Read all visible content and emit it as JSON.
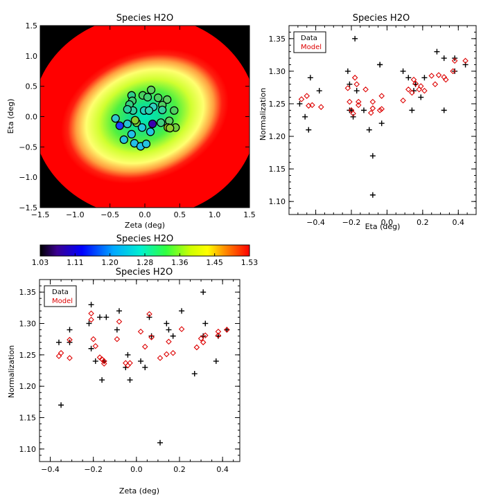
{
  "chart_data": [
    {
      "id": "map",
      "type": "heatmap",
      "title": "Species H2O",
      "xlabel": "Zeta (deg)",
      "ylabel": "Eta (deg)",
      "xlim": [
        -1.5,
        1.5
      ],
      "ylim": [
        -1.5,
        1.5
      ],
      "xticks": [
        "−1.5",
        "−1.0",
        "−0.5",
        "0.0",
        "0.5",
        "1.0",
        "1.5"
      ],
      "yticks": [
        "−1.5",
        "−1.0",
        "−0.5",
        "0.0",
        "0.5",
        "1.0",
        "1.5"
      ],
      "background": "#000000",
      "points": [
        {
          "x": -0.36,
          "y": -0.15,
          "c": "#1e3cff"
        },
        {
          "x": 0.11,
          "y": -0.12,
          "c": "#3a00b0"
        },
        {
          "x": -0.12,
          "y": -0.1,
          "c": "#7ad13c"
        },
        {
          "x": -0.19,
          "y": 0.35,
          "c": "#2fd08a"
        },
        {
          "x": -0.18,
          "y": 0.26,
          "c": "#3cd070"
        },
        {
          "x": -0.03,
          "y": 0.35,
          "c": "#4ad060"
        },
        {
          "x": 0.09,
          "y": 0.44,
          "c": "#60d060"
        },
        {
          "x": -0.22,
          "y": 0.2,
          "c": "#35d080"
        },
        {
          "x": -0.17,
          "y": 0.1,
          "c": "#2fd0a0"
        },
        {
          "x": 0.04,
          "y": 0.32,
          "c": "#40d070"
        },
        {
          "x": 0.19,
          "y": 0.31,
          "c": "#50d060"
        },
        {
          "x": 0.32,
          "y": 0.28,
          "c": "#60d060"
        },
        {
          "x": 0.25,
          "y": 0.19,
          "c": "#50d060"
        },
        {
          "x": 0.12,
          "y": 0.16,
          "c": "#30d0c0"
        },
        {
          "x": -0.01,
          "y": 0.1,
          "c": "#25d0c0"
        },
        {
          "x": -0.25,
          "y": 0.12,
          "c": "#28d0a0"
        },
        {
          "x": 0.06,
          "y": 0.1,
          "c": "#2ad0b0"
        },
        {
          "x": 0.25,
          "y": 0.11,
          "c": "#35d0a0"
        },
        {
          "x": 0.42,
          "y": 0.1,
          "c": "#50d060"
        },
        {
          "x": -0.14,
          "y": -0.06,
          "c": "#88cc30"
        },
        {
          "x": 0.23,
          "y": -0.1,
          "c": "#40d080"
        },
        {
          "x": 0.35,
          "y": -0.07,
          "c": "#60d060"
        },
        {
          "x": -0.25,
          "y": -0.12,
          "c": "#28c8d0"
        },
        {
          "x": -0.04,
          "y": -0.18,
          "c": "#22c8e0"
        },
        {
          "x": 0.33,
          "y": -0.18,
          "c": "#aacc20"
        },
        {
          "x": 0.44,
          "y": -0.18,
          "c": "#70d040"
        },
        {
          "x": 0.36,
          "y": -0.19,
          "c": "#90cc30"
        },
        {
          "x": -0.19,
          "y": -0.29,
          "c": "#22c0e8"
        },
        {
          "x": 0.08,
          "y": -0.25,
          "c": "#25c8e0"
        },
        {
          "x": -0.3,
          "y": -0.38,
          "c": "#25c4e0"
        },
        {
          "x": -0.15,
          "y": -0.44,
          "c": "#22c0e8"
        },
        {
          "x": -0.06,
          "y": -0.49,
          "c": "#22c0e8"
        },
        {
          "x": 0.02,
          "y": -0.45,
          "c": "#25c4e0"
        },
        {
          "x": -0.42,
          "y": -0.03,
          "c": "#30c8d0"
        }
      ]
    },
    {
      "id": "eta",
      "type": "scatter",
      "title": "Species H2O",
      "xlabel": "Eta (deg)",
      "ylabel": "Normalization",
      "xlim": [
        -0.55,
        0.5
      ],
      "ylim": [
        1.08,
        1.37
      ],
      "xticks": [
        -0.4,
        -0.2,
        0.0,
        0.2,
        0.4
      ],
      "xtick_labels": [
        "−0.4",
        "−0.2",
        "0.0",
        "0.2",
        "0.4"
      ],
      "yticks": [
        1.1,
        1.15,
        1.2,
        1.25,
        1.3,
        1.35
      ],
      "ytick_labels": [
        "1.10",
        "1.15",
        "1.20",
        "1.25",
        "1.30",
        "1.35"
      ],
      "legend": {
        "position": "top-left",
        "entries": [
          {
            "label": "Data",
            "color": "#000000"
          },
          {
            "label": "Model",
            "color": "#dd0000"
          }
        ]
      },
      "series": [
        {
          "name": "Data",
          "marker": "plus",
          "color": "#000000",
          "points": [
            [
              -0.49,
              1.25
            ],
            [
              -0.46,
              1.23
            ],
            [
              -0.44,
              1.21
            ],
            [
              -0.43,
              1.29
            ],
            [
              -0.38,
              1.27
            ],
            [
              -0.22,
              1.3
            ],
            [
              -0.21,
              1.28
            ],
            [
              -0.21,
              1.24
            ],
            [
              -0.19,
              1.23
            ],
            [
              -0.18,
              1.35
            ],
            [
              -0.17,
              1.27
            ],
            [
              -0.13,
              1.24
            ],
            [
              -0.1,
              1.21
            ],
            [
              -0.08,
              1.17
            ],
            [
              -0.08,
              1.11
            ],
            [
              -0.04,
              1.31
            ],
            [
              -0.03,
              1.22
            ],
            [
              -0.04,
              1.31
            ],
            [
              0.09,
              1.3
            ],
            [
              0.12,
              1.29
            ],
            [
              0.14,
              1.24
            ],
            [
              0.16,
              1.28
            ],
            [
              0.19,
              1.26
            ],
            [
              0.21,
              1.29
            ],
            [
              0.28,
              1.33
            ],
            [
              0.32,
              1.32
            ],
            [
              0.32,
              1.24
            ],
            [
              0.38,
              1.3
            ],
            [
              0.38,
              1.32
            ],
            [
              0.44,
              1.31
            ],
            [
              0.15,
              1.27
            ],
            [
              -0.2,
              1.24
            ]
          ]
        },
        {
          "name": "Model",
          "marker": "diamond",
          "color": "#dd0000",
          "points": [
            [
              -0.48,
              1.257
            ],
            [
              -0.45,
              1.262
            ],
            [
              -0.44,
              1.247
            ],
            [
              -0.42,
              1.248
            ],
            [
              -0.37,
              1.245
            ],
            [
              -0.22,
              1.274
            ],
            [
              -0.21,
              1.253
            ],
            [
              -0.2,
              1.24
            ],
            [
              -0.19,
              1.235
            ],
            [
              -0.18,
              1.29
            ],
            [
              -0.17,
              1.28
            ],
            [
              -0.16,
              1.248
            ],
            [
              -0.12,
              1.272
            ],
            [
              -0.09,
              1.236
            ],
            [
              -0.08,
              1.243
            ],
            [
              -0.08,
              1.253
            ],
            [
              -0.04,
              1.24
            ],
            [
              -0.03,
              1.262
            ],
            [
              -0.03,
              1.242
            ],
            [
              0.09,
              1.255
            ],
            [
              0.12,
              1.272
            ],
            [
              0.14,
              1.267
            ],
            [
              0.15,
              1.287
            ],
            [
              0.16,
              1.281
            ],
            [
              0.18,
              1.272
            ],
            [
              0.19,
              1.277
            ],
            [
              0.21,
              1.27
            ],
            [
              0.27,
              1.28
            ],
            [
              0.29,
              1.294
            ],
            [
              0.32,
              1.291
            ],
            [
              0.33,
              1.287
            ],
            [
              0.37,
              1.3
            ],
            [
              0.38,
              1.316
            ],
            [
              0.44,
              1.316
            ],
            [
              -0.16,
              1.253
            ],
            [
              0.25,
              1.293
            ]
          ]
        }
      ]
    },
    {
      "id": "colorbar",
      "type": "heatmap",
      "title": "Species H2O",
      "tick_labels": [
        "1.03",
        "1.11",
        "1.20",
        "1.28",
        "1.36",
        "1.45",
        "1.53"
      ],
      "colors": [
        "#000000",
        "#3a0080",
        "#0000ff",
        "#00d0ff",
        "#00ff80",
        "#ffff00",
        "#ff8000",
        "#ff0000"
      ]
    },
    {
      "id": "zeta",
      "type": "scatter",
      "title": "Species H2O",
      "xlabel": "Zeta (deg)",
      "ylabel": "Normalization",
      "xlim": [
        -0.45,
        0.48
      ],
      "ylim": [
        1.08,
        1.37
      ],
      "xticks": [
        -0.4,
        -0.2,
        0.0,
        0.2,
        0.4
      ],
      "xtick_labels": [
        "−0.4",
        "−0.2",
        "0.0",
        "0.2",
        "0.4"
      ],
      "yticks": [
        1.1,
        1.15,
        1.2,
        1.25,
        1.3,
        1.35
      ],
      "ytick_labels": [
        "1.10",
        "1.15",
        "1.20",
        "1.25",
        "1.30",
        "1.35"
      ],
      "legend": {
        "position": "top-left",
        "entries": [
          {
            "label": "Data",
            "color": "#000000"
          },
          {
            "label": "Model",
            "color": "#dd0000"
          }
        ]
      },
      "series": [
        {
          "name": "Data",
          "marker": "plus",
          "color": "#000000",
          "points": [
            [
              -0.36,
              1.27
            ],
            [
              -0.35,
              1.17
            ],
            [
              -0.31,
              1.29
            ],
            [
              -0.31,
              1.27
            ],
            [
              -0.21,
              1.33
            ],
            [
              -0.22,
              1.3
            ],
            [
              -0.21,
              1.26
            ],
            [
              -0.19,
              1.24
            ],
            [
              -0.17,
              1.31
            ],
            [
              -0.16,
              1.21
            ],
            [
              -0.15,
              1.24
            ],
            [
              -0.14,
              1.31
            ],
            [
              -0.09,
              1.29
            ],
            [
              -0.08,
              1.32
            ],
            [
              -0.05,
              1.23
            ],
            [
              -0.04,
              1.25
            ],
            [
              -0.03,
              1.21
            ],
            [
              0.02,
              1.24
            ],
            [
              0.04,
              1.23
            ],
            [
              0.06,
              1.31
            ],
            [
              0.07,
              1.28
            ],
            [
              0.11,
              1.11
            ],
            [
              0.14,
              1.3
            ],
            [
              0.15,
              1.29
            ],
            [
              0.17,
              1.28
            ],
            [
              0.21,
              1.32
            ],
            [
              0.27,
              1.22
            ],
            [
              0.31,
              1.35
            ],
            [
              0.31,
              1.28
            ],
            [
              0.32,
              1.3
            ],
            [
              0.37,
              1.24
            ],
            [
              0.38,
              1.28
            ],
            [
              0.42,
              1.29
            ]
          ]
        },
        {
          "name": "Model",
          "marker": "diamond",
          "color": "#dd0000",
          "points": [
            [
              -0.36,
              1.248
            ],
            [
              -0.35,
              1.253
            ],
            [
              -0.31,
              1.274
            ],
            [
              -0.31,
              1.245
            ],
            [
              -0.21,
              1.316
            ],
            [
              -0.21,
              1.306
            ],
            [
              -0.2,
              1.275
            ],
            [
              -0.19,
              1.264
            ],
            [
              -0.17,
              1.246
            ],
            [
              -0.16,
              1.243
            ],
            [
              -0.15,
              1.236
            ],
            [
              -0.15,
              1.24
            ],
            [
              -0.09,
              1.275
            ],
            [
              -0.08,
              1.303
            ],
            [
              -0.05,
              1.237
            ],
            [
              -0.04,
              1.233
            ],
            [
              -0.03,
              1.237
            ],
            [
              0.02,
              1.287
            ],
            [
              0.04,
              1.263
            ],
            [
              0.06,
              1.315
            ],
            [
              0.07,
              1.278
            ],
            [
              0.11,
              1.245
            ],
            [
              0.14,
              1.251
            ],
            [
              0.15,
              1.271
            ],
            [
              0.17,
              1.253
            ],
            [
              0.21,
              1.291
            ],
            [
              0.28,
              1.262
            ],
            [
              0.3,
              1.276
            ],
            [
              0.31,
              1.27
            ],
            [
              0.32,
              1.281
            ],
            [
              0.38,
              1.281
            ],
            [
              0.38,
              1.287
            ],
            [
              0.42,
              1.29
            ]
          ]
        }
      ]
    }
  ]
}
